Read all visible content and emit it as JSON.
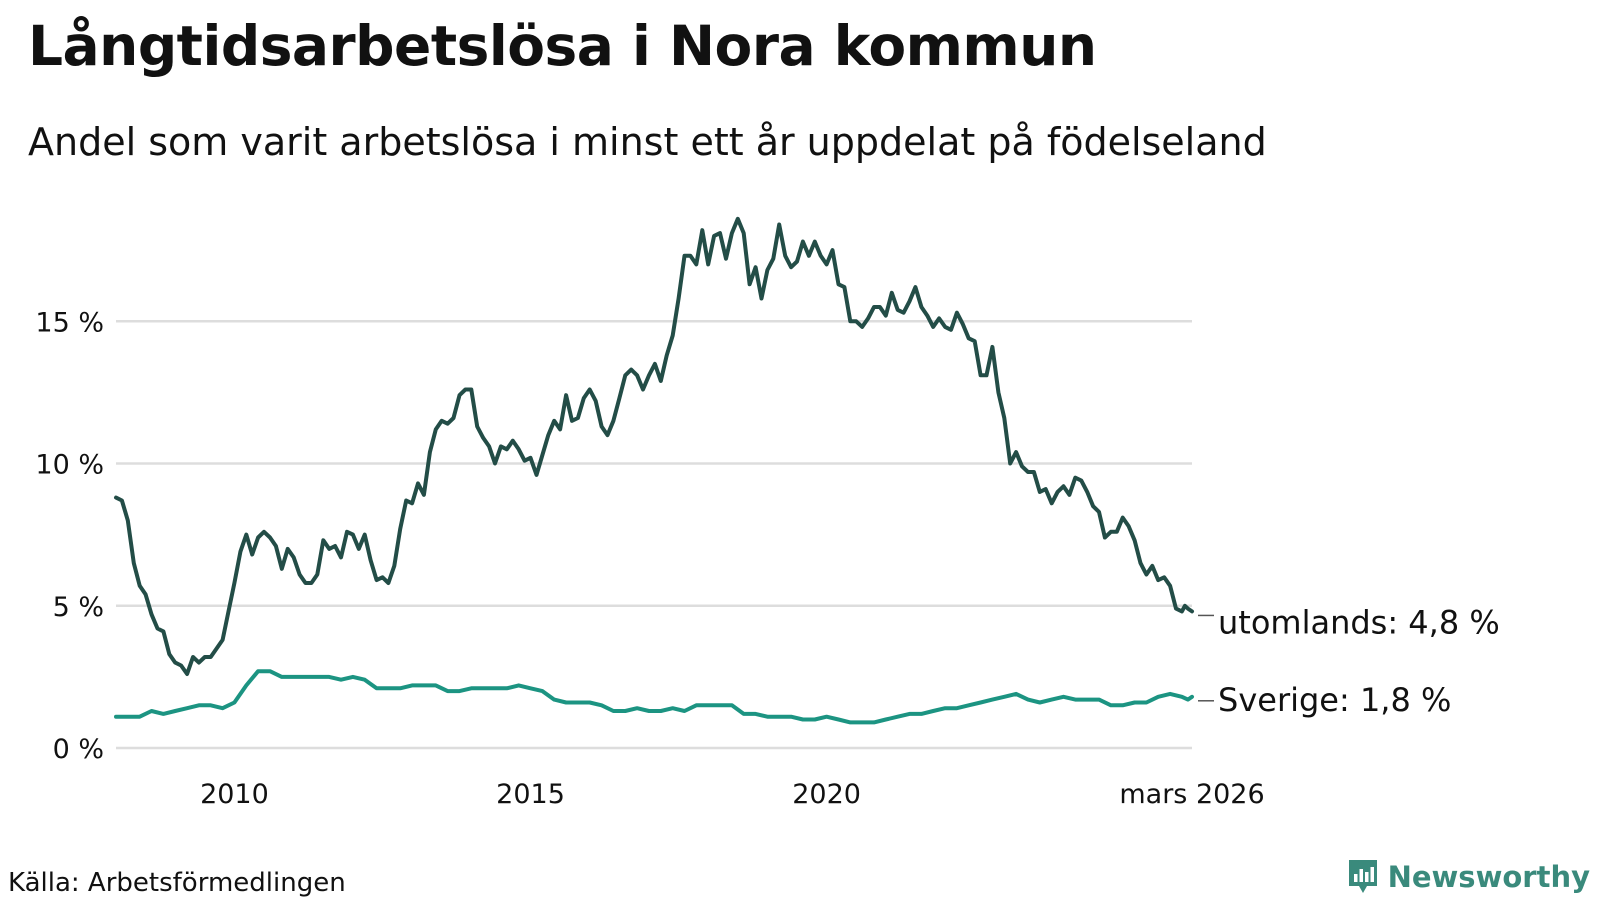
{
  "header": {
    "title": "Långtidsarbetslösa i Nora kommun",
    "subtitle": "Andel som varit arbetslösa i minst ett år uppdelat på födelseland"
  },
  "footer": {
    "source": "Källa: Arbetsförmedlingen",
    "brand": "Newsworthy"
  },
  "colors": {
    "utomlands": "#234d47",
    "sverige": "#1c9482",
    "grid": "#dddddd",
    "brand": "#3a8a7c"
  },
  "chart_data": {
    "type": "line",
    "title": "Långtidsarbetslösa i Nora kommun",
    "subtitle": "Andel som varit arbetslösa i minst ett år uppdelat på födelseland",
    "xlabel": "",
    "ylabel": "",
    "x_range": [
      2008.0,
      2026.17
    ],
    "ylim": [
      0,
      19
    ],
    "y_ticks": [
      0,
      5,
      10,
      15
    ],
    "y_tick_labels": [
      "0 %",
      "5 %",
      "10 %",
      "15 %"
    ],
    "x_ticks": [
      2010,
      2015,
      2020,
      2026.17
    ],
    "x_tick_labels": [
      "2010",
      "2015",
      "2020",
      "mars 2026"
    ],
    "grid": true,
    "series": [
      {
        "name": "utomlands",
        "end_label": "utomlands: 4,8 %",
        "points": [
          [
            2008.0,
            8.8
          ],
          [
            2008.1,
            8.7
          ],
          [
            2008.2,
            8.0
          ],
          [
            2008.3,
            6.5
          ],
          [
            2008.4,
            5.7
          ],
          [
            2008.5,
            5.4
          ],
          [
            2008.6,
            4.7
          ],
          [
            2008.7,
            4.2
          ],
          [
            2008.8,
            4.1
          ],
          [
            2008.9,
            3.3
          ],
          [
            2009.0,
            3.0
          ],
          [
            2009.1,
            2.9
          ],
          [
            2009.2,
            2.6
          ],
          [
            2009.3,
            3.2
          ],
          [
            2009.4,
            3.0
          ],
          [
            2009.5,
            3.2
          ],
          [
            2009.6,
            3.2
          ],
          [
            2009.7,
            3.5
          ],
          [
            2009.8,
            3.8
          ],
          [
            2009.9,
            4.8
          ],
          [
            2010.0,
            5.8
          ],
          [
            2010.1,
            6.9
          ],
          [
            2010.2,
            7.5
          ],
          [
            2010.3,
            6.8
          ],
          [
            2010.4,
            7.4
          ],
          [
            2010.5,
            7.6
          ],
          [
            2010.6,
            7.4
          ],
          [
            2010.7,
            7.1
          ],
          [
            2010.8,
            6.3
          ],
          [
            2010.9,
            7.0
          ],
          [
            2011.0,
            6.7
          ],
          [
            2011.1,
            6.1
          ],
          [
            2011.2,
            5.8
          ],
          [
            2011.3,
            5.8
          ],
          [
            2011.4,
            6.1
          ],
          [
            2011.5,
            7.3
          ],
          [
            2011.6,
            7.0
          ],
          [
            2011.7,
            7.1
          ],
          [
            2011.8,
            6.7
          ],
          [
            2011.9,
            7.6
          ],
          [
            2012.0,
            7.5
          ],
          [
            2012.1,
            7.0
          ],
          [
            2012.2,
            7.5
          ],
          [
            2012.3,
            6.6
          ],
          [
            2012.4,
            5.9
          ],
          [
            2012.5,
            6.0
          ],
          [
            2012.6,
            5.8
          ],
          [
            2012.7,
            6.4
          ],
          [
            2012.8,
            7.7
          ],
          [
            2012.9,
            8.7
          ],
          [
            2013.0,
            8.6
          ],
          [
            2013.1,
            9.3
          ],
          [
            2013.2,
            8.9
          ],
          [
            2013.3,
            10.4
          ],
          [
            2013.4,
            11.2
          ],
          [
            2013.5,
            11.5
          ],
          [
            2013.6,
            11.4
          ],
          [
            2013.7,
            11.6
          ],
          [
            2013.8,
            12.4
          ],
          [
            2013.9,
            12.6
          ],
          [
            2014.0,
            12.6
          ],
          [
            2014.1,
            11.3
          ],
          [
            2014.2,
            10.9
          ],
          [
            2014.3,
            10.6
          ],
          [
            2014.4,
            10.0
          ],
          [
            2014.5,
            10.6
          ],
          [
            2014.6,
            10.5
          ],
          [
            2014.7,
            10.8
          ],
          [
            2014.8,
            10.5
          ],
          [
            2014.9,
            10.1
          ],
          [
            2015.0,
            10.2
          ],
          [
            2015.1,
            9.6
          ],
          [
            2015.2,
            10.3
          ],
          [
            2015.3,
            11.0
          ],
          [
            2015.4,
            11.5
          ],
          [
            2015.5,
            11.2
          ],
          [
            2015.6,
            12.4
          ],
          [
            2015.7,
            11.5
          ],
          [
            2015.8,
            11.6
          ],
          [
            2015.9,
            12.3
          ],
          [
            2016.0,
            12.6
          ],
          [
            2016.1,
            12.2
          ],
          [
            2016.2,
            11.3
          ],
          [
            2016.3,
            11.0
          ],
          [
            2016.4,
            11.5
          ],
          [
            2016.5,
            12.3
          ],
          [
            2016.6,
            13.1
          ],
          [
            2016.7,
            13.3
          ],
          [
            2016.8,
            13.1
          ],
          [
            2016.9,
            12.6
          ],
          [
            2017.0,
            13.1
          ],
          [
            2017.1,
            13.5
          ],
          [
            2017.2,
            12.9
          ],
          [
            2017.3,
            13.8
          ],
          [
            2017.4,
            14.5
          ],
          [
            2017.5,
            15.8
          ],
          [
            2017.6,
            17.3
          ],
          [
            2017.7,
            17.3
          ],
          [
            2017.8,
            17.0
          ],
          [
            2017.9,
            18.2
          ],
          [
            2018.0,
            17.0
          ],
          [
            2018.1,
            18.0
          ],
          [
            2018.2,
            18.1
          ],
          [
            2018.3,
            17.2
          ],
          [
            2018.4,
            18.1
          ],
          [
            2018.5,
            18.6
          ],
          [
            2018.6,
            18.1
          ],
          [
            2018.7,
            16.3
          ],
          [
            2018.8,
            16.9
          ],
          [
            2018.9,
            15.8
          ],
          [
            2019.0,
            16.8
          ],
          [
            2019.1,
            17.2
          ],
          [
            2019.2,
            18.4
          ],
          [
            2019.3,
            17.3
          ],
          [
            2019.4,
            16.9
          ],
          [
            2019.5,
            17.1
          ],
          [
            2019.6,
            17.8
          ],
          [
            2019.7,
            17.3
          ],
          [
            2019.8,
            17.8
          ],
          [
            2019.9,
            17.3
          ],
          [
            2020.0,
            17.0
          ],
          [
            2020.1,
            17.5
          ],
          [
            2020.2,
            16.3
          ],
          [
            2020.3,
            16.2
          ],
          [
            2020.4,
            15.0
          ],
          [
            2020.5,
            15.0
          ],
          [
            2020.6,
            14.8
          ],
          [
            2020.7,
            15.1
          ],
          [
            2020.8,
            15.5
          ],
          [
            2020.9,
            15.5
          ],
          [
            2021.0,
            15.2
          ],
          [
            2021.1,
            16.0
          ],
          [
            2021.2,
            15.4
          ],
          [
            2021.3,
            15.3
          ],
          [
            2021.4,
            15.7
          ],
          [
            2021.5,
            16.2
          ],
          [
            2021.6,
            15.5
          ],
          [
            2021.7,
            15.2
          ],
          [
            2021.8,
            14.8
          ],
          [
            2021.9,
            15.1
          ],
          [
            2022.0,
            14.8
          ],
          [
            2022.1,
            14.7
          ],
          [
            2022.2,
            15.3
          ],
          [
            2022.3,
            14.9
          ],
          [
            2022.4,
            14.4
          ],
          [
            2022.5,
            14.3
          ],
          [
            2022.6,
            13.1
          ],
          [
            2022.7,
            13.1
          ],
          [
            2022.8,
            14.1
          ],
          [
            2022.9,
            12.5
          ],
          [
            2023.0,
            11.6
          ],
          [
            2023.1,
            10.0
          ],
          [
            2023.2,
            10.4
          ],
          [
            2023.3,
            9.9
          ],
          [
            2023.4,
            9.7
          ],
          [
            2023.5,
            9.7
          ],
          [
            2023.6,
            9.0
          ],
          [
            2023.7,
            9.1
          ],
          [
            2023.8,
            8.6
          ],
          [
            2023.9,
            9.0
          ],
          [
            2024.0,
            9.2
          ],
          [
            2024.1,
            8.9
          ],
          [
            2024.2,
            9.5
          ],
          [
            2024.3,
            9.4
          ],
          [
            2024.4,
            9.0
          ],
          [
            2024.5,
            8.5
          ],
          [
            2024.6,
            8.3
          ],
          [
            2024.7,
            7.4
          ],
          [
            2024.8,
            7.6
          ],
          [
            2024.9,
            7.6
          ],
          [
            2025.0,
            8.1
          ],
          [
            2025.1,
            7.8
          ],
          [
            2025.2,
            7.3
          ],
          [
            2025.3,
            6.5
          ],
          [
            2025.4,
            6.1
          ],
          [
            2025.5,
            6.4
          ],
          [
            2025.6,
            5.9
          ],
          [
            2025.7,
            6.0
          ],
          [
            2025.8,
            5.7
          ],
          [
            2025.9,
            4.9
          ],
          [
            2026.0,
            4.8
          ],
          [
            2026.05,
            5.0
          ],
          [
            2026.1,
            4.9
          ],
          [
            2026.17,
            4.8
          ]
        ]
      },
      {
        "name": "Sverige",
        "end_label": "Sverige: 1,8 %",
        "points": [
          [
            2008.0,
            1.1
          ],
          [
            2008.2,
            1.1
          ],
          [
            2008.4,
            1.1
          ],
          [
            2008.6,
            1.3
          ],
          [
            2008.8,
            1.2
          ],
          [
            2009.0,
            1.3
          ],
          [
            2009.2,
            1.4
          ],
          [
            2009.4,
            1.5
          ],
          [
            2009.6,
            1.5
          ],
          [
            2009.8,
            1.4
          ],
          [
            2010.0,
            1.6
          ],
          [
            2010.2,
            2.2
          ],
          [
            2010.4,
            2.7
          ],
          [
            2010.6,
            2.7
          ],
          [
            2010.8,
            2.5
          ],
          [
            2011.0,
            2.5
          ],
          [
            2011.2,
            2.5
          ],
          [
            2011.4,
            2.5
          ],
          [
            2011.6,
            2.5
          ],
          [
            2011.8,
            2.4
          ],
          [
            2012.0,
            2.5
          ],
          [
            2012.2,
            2.4
          ],
          [
            2012.4,
            2.1
          ],
          [
            2012.6,
            2.1
          ],
          [
            2012.8,
            2.1
          ],
          [
            2013.0,
            2.2
          ],
          [
            2013.2,
            2.2
          ],
          [
            2013.4,
            2.2
          ],
          [
            2013.6,
            2.0
          ],
          [
            2013.8,
            2.0
          ],
          [
            2014.0,
            2.1
          ],
          [
            2014.2,
            2.1
          ],
          [
            2014.4,
            2.1
          ],
          [
            2014.6,
            2.1
          ],
          [
            2014.8,
            2.2
          ],
          [
            2015.0,
            2.1
          ],
          [
            2015.2,
            2.0
          ],
          [
            2015.4,
            1.7
          ],
          [
            2015.6,
            1.6
          ],
          [
            2015.8,
            1.6
          ],
          [
            2016.0,
            1.6
          ],
          [
            2016.2,
            1.5
          ],
          [
            2016.4,
            1.3
          ],
          [
            2016.6,
            1.3
          ],
          [
            2016.8,
            1.4
          ],
          [
            2017.0,
            1.3
          ],
          [
            2017.2,
            1.3
          ],
          [
            2017.4,
            1.4
          ],
          [
            2017.6,
            1.3
          ],
          [
            2017.8,
            1.5
          ],
          [
            2018.0,
            1.5
          ],
          [
            2018.2,
            1.5
          ],
          [
            2018.4,
            1.5
          ],
          [
            2018.6,
            1.2
          ],
          [
            2018.8,
            1.2
          ],
          [
            2019.0,
            1.1
          ],
          [
            2019.2,
            1.1
          ],
          [
            2019.4,
            1.1
          ],
          [
            2019.6,
            1.0
          ],
          [
            2019.8,
            1.0
          ],
          [
            2020.0,
            1.1
          ],
          [
            2020.2,
            1.0
          ],
          [
            2020.4,
            0.9
          ],
          [
            2020.6,
            0.9
          ],
          [
            2020.8,
            0.9
          ],
          [
            2021.0,
            1.0
          ],
          [
            2021.2,
            1.1
          ],
          [
            2021.4,
            1.2
          ],
          [
            2021.6,
            1.2
          ],
          [
            2021.8,
            1.3
          ],
          [
            2022.0,
            1.4
          ],
          [
            2022.2,
            1.4
          ],
          [
            2022.4,
            1.5
          ],
          [
            2022.6,
            1.6
          ],
          [
            2022.8,
            1.7
          ],
          [
            2023.0,
            1.8
          ],
          [
            2023.2,
            1.9
          ],
          [
            2023.4,
            1.7
          ],
          [
            2023.6,
            1.6
          ],
          [
            2023.8,
            1.7
          ],
          [
            2024.0,
            1.8
          ],
          [
            2024.2,
            1.7
          ],
          [
            2024.4,
            1.7
          ],
          [
            2024.6,
            1.7
          ],
          [
            2024.8,
            1.5
          ],
          [
            2025.0,
            1.5
          ],
          [
            2025.2,
            1.6
          ],
          [
            2025.4,
            1.6
          ],
          [
            2025.6,
            1.8
          ],
          [
            2025.8,
            1.9
          ],
          [
            2026.0,
            1.8
          ],
          [
            2026.1,
            1.7
          ],
          [
            2026.17,
            1.8
          ]
        ]
      }
    ]
  }
}
